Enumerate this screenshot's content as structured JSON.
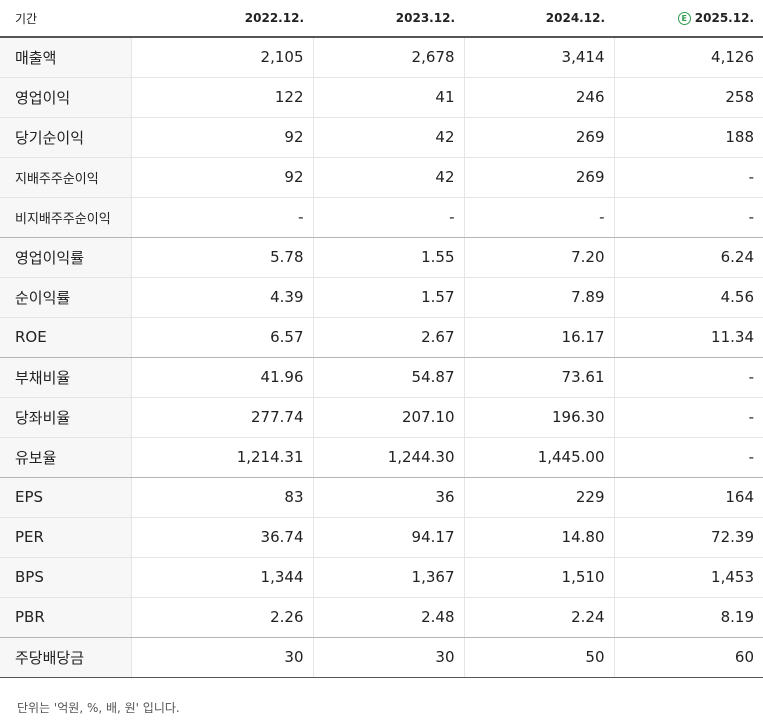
{
  "header": {
    "label": "기간",
    "periods": [
      "2022.12.",
      "2023.12.",
      "2024.12.",
      "2025.12."
    ],
    "estimate_badge": "E"
  },
  "rows": [
    {
      "label": "매출액",
      "values": [
        "2,105",
        "2,678",
        "3,414",
        "4,126"
      ]
    },
    {
      "label": "영업이익",
      "values": [
        "122",
        "41",
        "246",
        "258"
      ]
    },
    {
      "label": "당기순이익",
      "values": [
        "92",
        "42",
        "269",
        "188"
      ]
    },
    {
      "label": "지배주주순이익",
      "values": [
        "92",
        "42",
        "269",
        "-"
      ]
    },
    {
      "label": "비지배주주순이익",
      "values": [
        "-",
        "-",
        "-",
        "-"
      ]
    },
    {
      "label": "영업이익률",
      "values": [
        "5.78",
        "1.55",
        "7.20",
        "6.24"
      ]
    },
    {
      "label": "순이익률",
      "values": [
        "4.39",
        "1.57",
        "7.89",
        "4.56"
      ]
    },
    {
      "label": "ROE",
      "values": [
        "6.57",
        "2.67",
        "16.17",
        "11.34"
      ]
    },
    {
      "label": "부채비율",
      "values": [
        "41.96",
        "54.87",
        "73.61",
        "-"
      ]
    },
    {
      "label": "당좌비율",
      "values": [
        "277.74",
        "207.10",
        "196.30",
        "-"
      ]
    },
    {
      "label": "유보율",
      "values": [
        "1,214.31",
        "1,244.30",
        "1,445.00",
        "-"
      ]
    },
    {
      "label": "EPS",
      "values": [
        "83",
        "36",
        "229",
        "164"
      ]
    },
    {
      "label": "PER",
      "values": [
        "36.74",
        "94.17",
        "14.80",
        "72.39"
      ]
    },
    {
      "label": "BPS",
      "values": [
        "1,344",
        "1,367",
        "1,510",
        "1,453"
      ]
    },
    {
      "label": "PBR",
      "values": [
        "2.26",
        "2.48",
        "2.24",
        "8.19"
      ]
    },
    {
      "label": "주당배당금",
      "values": [
        "30",
        "30",
        "50",
        "60"
      ]
    }
  ],
  "footnote": "단위는 '억원, %, 배, 원' 입니다."
}
